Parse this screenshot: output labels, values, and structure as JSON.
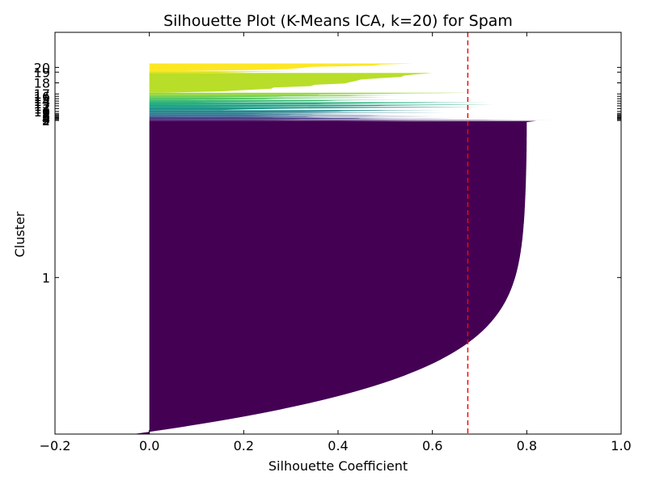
{
  "chart_data": {
    "type": "silhouette",
    "title": "Silhouette Plot (K-Means ICA, k=20) for Spam",
    "xlabel": "Silhouette Coefficient",
    "ylabel": "Cluster",
    "xlim": [
      -0.2,
      1.0
    ],
    "x_ticks": [
      "−0.2",
      "0.0",
      "0.2",
      "0.4",
      "0.6",
      "0.8",
      "1.0"
    ],
    "average_silhouette": 0.675,
    "average_line_color": "#ff0000",
    "grid": false,
    "clusters": [
      {
        "label": "1",
        "color": "#440154",
        "size_share": 0.79,
        "max": 0.82,
        "min": 0.0
      },
      {
        "label": "2",
        "color": "#481567",
        "size_share": 0.002,
        "max": 0.86,
        "min": 0.0
      },
      {
        "label": "3",
        "color": "#482677",
        "size_share": 0.002,
        "max": 0.58,
        "min": 0.0
      },
      {
        "label": "4",
        "color": "#453781",
        "size_share": 0.002,
        "max": 0.66,
        "min": 0.0
      },
      {
        "label": "5",
        "color": "#404788",
        "size_share": 0.002,
        "max": 0.6,
        "min": 0.0
      },
      {
        "label": "6",
        "color": "#39568c",
        "size_share": 0.002,
        "max": 0.62,
        "min": 0.0
      },
      {
        "label": "7",
        "color": "#33638d",
        "size_share": 0.002,
        "max": 0.55,
        "min": 0.0
      },
      {
        "label": "8",
        "color": "#2d708e",
        "size_share": 0.002,
        "max": 0.5,
        "min": 0.0
      },
      {
        "label": "9",
        "color": "#287d8e",
        "size_share": 0.004,
        "max": 0.63,
        "min": 0.0
      },
      {
        "label": "10",
        "color": "#238a8d",
        "size_share": 0.006,
        "max": 0.62,
        "min": 0.0
      },
      {
        "label": "11",
        "color": "#1f968b",
        "size_share": 0.008,
        "max": 0.7,
        "min": 0.0
      },
      {
        "label": "12",
        "color": "#20a387",
        "size_share": 0.006,
        "max": 0.73,
        "min": 0.0
      },
      {
        "label": "13",
        "color": "#29af7f",
        "size_share": 0.006,
        "max": 0.72,
        "min": 0.0
      },
      {
        "label": "14",
        "color": "#3cbb75",
        "size_share": 0.006,
        "max": 0.55,
        "min": 0.0
      },
      {
        "label": "15",
        "color": "#55c667",
        "size_share": 0.006,
        "max": 0.5,
        "min": 0.0
      },
      {
        "label": "16",
        "color": "#73d055",
        "size_share": 0.006,
        "max": 0.53,
        "min": 0.0
      },
      {
        "label": "17",
        "color": "#95d840",
        "size_share": 0.006,
        "max": 0.68,
        "min": 0.0
      },
      {
        "label": "18",
        "color": "#b8de29",
        "size_share": 0.05,
        "max": 0.6,
        "min": 0.0
      },
      {
        "label": "19",
        "color": "#dce319",
        "size_share": 0.004,
        "max": 0.32,
        "min": -0.07
      },
      {
        "label": "20",
        "color": "#fde725",
        "size_share": 0.02,
        "max": 0.56,
        "min": 0.0
      }
    ]
  }
}
